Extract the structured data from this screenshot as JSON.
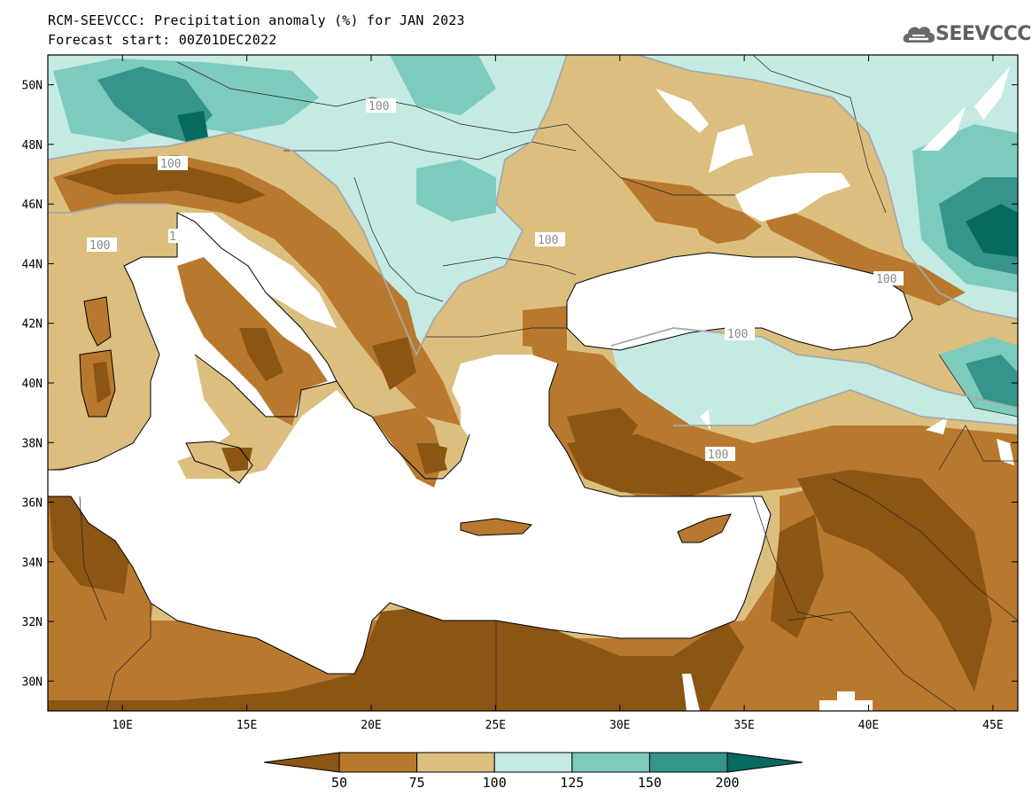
{
  "header": {
    "title_line1": "RCM-SEEVCCC: Precipitation anomaly (%) for JAN 2023",
    "title_line2": "Forecast start: 00Z01DEC2022",
    "logo_text": "SEEVCCC",
    "logo_icon": "cloud-icon"
  },
  "map": {
    "lon_range": [
      7,
      46
    ],
    "lat_range": [
      29,
      51
    ],
    "lat_labels": [
      "50N",
      "48N",
      "46N",
      "44N",
      "42N",
      "40N",
      "38N",
      "36N",
      "34N",
      "32N",
      "30N"
    ],
    "lat_values": [
      50,
      48,
      46,
      44,
      42,
      40,
      38,
      36,
      34,
      32,
      30
    ],
    "lon_labels": [
      "10E",
      "15E",
      "20E",
      "25E",
      "30E",
      "35E",
      "40E",
      "45E"
    ],
    "lon_values": [
      10,
      15,
      20,
      25,
      30,
      35,
      40,
      45
    ],
    "contour_labels": [
      "100",
      "100",
      "100",
      "100",
      "100",
      "100",
      "100",
      "1"
    ]
  },
  "colorbar": {
    "ticks": [
      "50",
      "75",
      "100",
      "125",
      "150",
      "200"
    ],
    "colors": [
      "#8b5513",
      "#b8792f",
      "#dcbf7f",
      "#c4eae3",
      "#7dcbbd",
      "#35958a",
      "#076a60"
    ]
  }
}
